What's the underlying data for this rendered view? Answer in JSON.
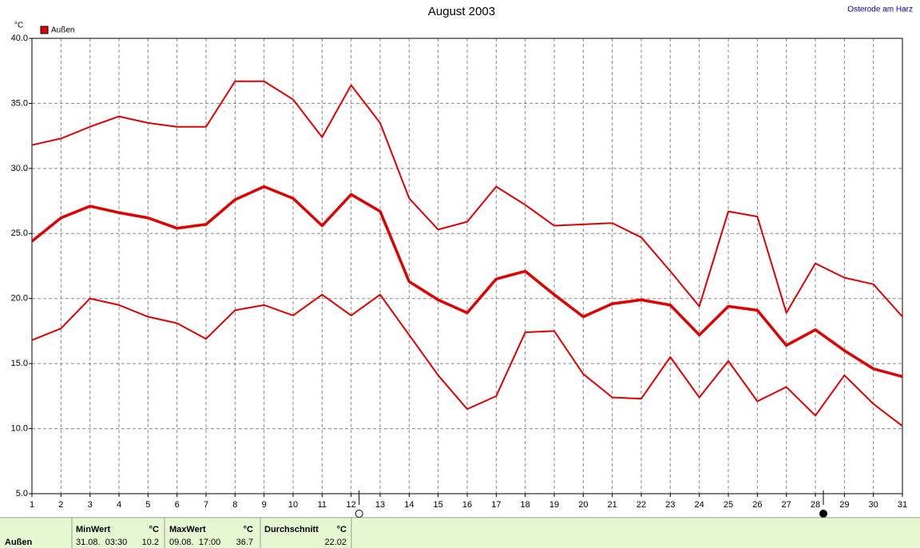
{
  "chart_data": {
    "type": "line",
    "title": "August 2003",
    "location": "Osterode am Harz",
    "y_unit": "°C",
    "legend_label": "Außen",
    "legend_color": "#e00000",
    "x": [
      1,
      2,
      3,
      4,
      5,
      6,
      7,
      8,
      9,
      10,
      11,
      12,
      13,
      14,
      15,
      16,
      17,
      18,
      19,
      20,
      21,
      22,
      23,
      24,
      25,
      26,
      27,
      28,
      29,
      30,
      31
    ],
    "xlim": [
      1,
      31
    ],
    "xticks": [
      1,
      2,
      3,
      4,
      5,
      6,
      7,
      8,
      9,
      10,
      11,
      12,
      13,
      14,
      15,
      16,
      17,
      18,
      19,
      20,
      21,
      22,
      23,
      24,
      25,
      26,
      27,
      28,
      29,
      30,
      31
    ],
    "ylim": [
      5,
      40
    ],
    "yticks": [
      {
        "value": 5,
        "label": "5.0"
      },
      {
        "value": 10,
        "label": "10.0"
      },
      {
        "value": 15,
        "label": "15.0"
      },
      {
        "value": 20,
        "label": "20.0"
      },
      {
        "value": 25,
        "label": "25.0"
      },
      {
        "value": 30,
        "label": "30.0"
      },
      {
        "value": 35,
        "label": "35.0"
      },
      {
        "value": 40,
        "label": "40.0"
      }
    ],
    "grid": true,
    "series": [
      {
        "color": "#e00000",
        "width": 2,
        "values": [
          31.8,
          32.3,
          33.2,
          34.0,
          33.5,
          33.2,
          33.2,
          36.7,
          36.7,
          35.3,
          32.4,
          36.4,
          33.5,
          27.7,
          25.3,
          25.9,
          28.6,
          27.2,
          25.6,
          25.7,
          25.8,
          24.7,
          22.1,
          19.4,
          26.7,
          26.3,
          18.9,
          22.7,
          21.6,
          21.1,
          18.6
        ]
      },
      {
        "color": "#e00000",
        "width": 3.5,
        "values": [
          24.4,
          26.2,
          27.1,
          26.6,
          26.2,
          25.4,
          25.7,
          27.6,
          28.6,
          27.7,
          25.6,
          28.0,
          26.7,
          21.3,
          19.9,
          18.9,
          21.5,
          22.1,
          20.3,
          18.6,
          19.6,
          19.9,
          19.5,
          17.2,
          19.4,
          19.1,
          16.4,
          17.6,
          16.0,
          14.6,
          14.0
        ]
      },
      {
        "color": "#e00000",
        "width": 2,
        "values": [
          16.8,
          17.7,
          20.0,
          19.5,
          18.6,
          18.1,
          16.9,
          19.1,
          19.5,
          18.7,
          20.3,
          18.7,
          20.3,
          17.2,
          14.1,
          11.5,
          12.5,
          17.4,
          17.5,
          14.2,
          12.4,
          12.3,
          15.5,
          12.4,
          15.2,
          12.1,
          13.2,
          11.0,
          14.1,
          11.9,
          10.2
        ]
      }
    ],
    "moon_markers": [
      {
        "x": 12,
        "filled": false
      },
      {
        "x": 28,
        "filled": true
      }
    ],
    "summary": {
      "row_label": "Außen",
      "min": {
        "header": "MinWert",
        "unit": "°C",
        "time": "31.08.  03:30",
        "value": "10.2"
      },
      "max": {
        "header": "MaxWert",
        "unit": "°C",
        "time": "09.08.  17:00",
        "value": "36.7"
      },
      "avg": {
        "header": "Durchschnitt",
        "unit": "°C",
        "value": "22.02"
      }
    }
  }
}
